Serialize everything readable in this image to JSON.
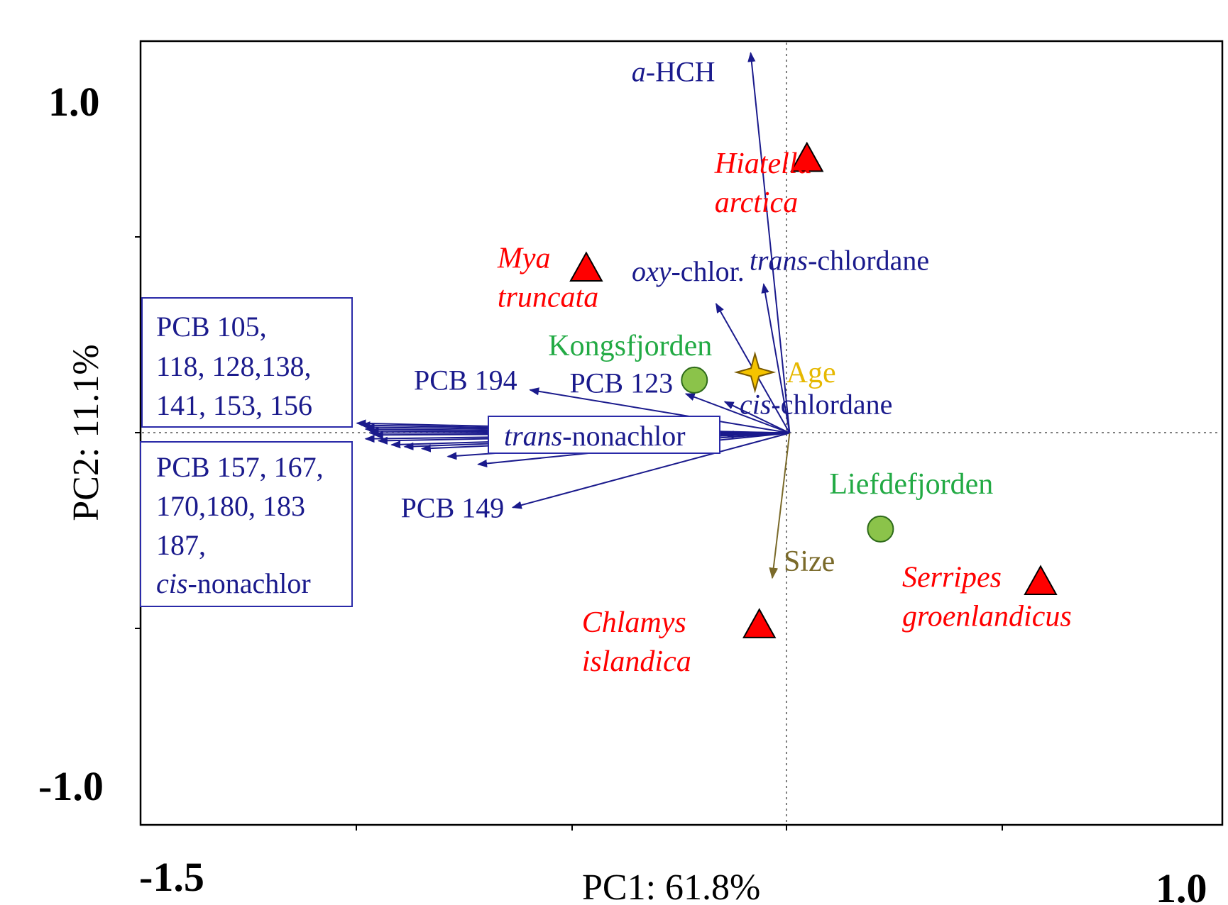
{
  "chart_data": {
    "type": "scatter",
    "title": "",
    "xlabel": "PC1: 61.8%",
    "ylabel": "PC2: 11.1%",
    "xlim": [
      -1.5,
      1.0
    ],
    "ylim": [
      -1.0,
      1.0
    ],
    "x_tick_labels": [
      "-1.5",
      "1.0"
    ],
    "y_tick_labels": [
      "1.0",
      "-1.0"
    ],
    "grid": false,
    "reference_lines": "dotted lines at x = 0 and y = 0",
    "colors": {
      "axes": "#000000",
      "loadings": "#1a1a8c",
      "species": "#ff0000",
      "fjords": "#22aa44",
      "age": "#e6b800",
      "size": "#7a6a2a"
    },
    "species": [
      {
        "label_lines": [
          "Hiatella",
          "arctica"
        ],
        "x": 0.04,
        "y": 0.7
      },
      {
        "label_lines": [
          "Mya",
          "truncata"
        ],
        "x": -0.47,
        "y": 0.42
      },
      {
        "label_lines": [
          "Chlamys",
          "islandica"
        ],
        "x": -0.07,
        "y": -0.49
      },
      {
        "label_lines": [
          "Serripes",
          "groenlandicus"
        ],
        "x": 0.58,
        "y": -0.38
      }
    ],
    "fjords": [
      {
        "label": "Kongsfjorden",
        "x": -0.22,
        "y": 0.135
      },
      {
        "label": "Liefdefjorden",
        "x": 0.21,
        "y": -0.245
      }
    ],
    "age": {
      "label": "Age",
      "x": -0.08,
      "y": 0.155
    },
    "size": {
      "label": "Size",
      "x": -0.04,
      "y": -0.37
    },
    "loadings": [
      {
        "label": "a-HCH",
        "x": -0.09,
        "y": 0.97
      },
      {
        "label": "trans-chlordane",
        "x": -0.06,
        "y": 0.38
      },
      {
        "label": "oxy-chlor.",
        "x": -0.17,
        "y": 0.33
      },
      {
        "label": "cis-chlordane",
        "x": -0.15,
        "y": 0.08
      },
      {
        "label": "PCB 123",
        "x": -0.24,
        "y": 0.1
      },
      {
        "label": "PCB 194",
        "x": -0.6,
        "y": 0.11
      },
      {
        "label": "PCB 149",
        "x": -0.64,
        "y": -0.19
      },
      {
        "label": "trans-nonachlor",
        "x": -0.15,
        "y": -0.005
      },
      {
        "label": "PCB 105",
        "x": -1.0,
        "y": 0.025
      },
      {
        "label": "PCB 118",
        "x": -0.99,
        "y": 0.02
      },
      {
        "label": "PCB 128",
        "x": -0.98,
        "y": 0.015
      },
      {
        "label": "PCB 138",
        "x": -0.98,
        "y": 0.01
      },
      {
        "label": "PCB 141",
        "x": -0.97,
        "y": 0.005
      },
      {
        "label": "PCB 153",
        "x": -0.97,
        "y": 0.0
      },
      {
        "label": "PCB 156",
        "x": -0.96,
        "y": -0.005
      },
      {
        "label": "PCB 157",
        "x": -0.98,
        "y": -0.015
      },
      {
        "label": "PCB 167",
        "x": -0.92,
        "y": -0.03
      },
      {
        "label": "PCB 170",
        "x": -0.85,
        "y": -0.04
      },
      {
        "label": "PCB 180",
        "x": -0.79,
        "y": -0.06
      },
      {
        "label": "PCB 183",
        "x": -0.72,
        "y": -0.08
      },
      {
        "label": "PCB 187",
        "x": -0.89,
        "y": -0.035
      },
      {
        "label": "cis-nonachlor",
        "x": -0.95,
        "y": -0.02
      }
    ],
    "box_upper": {
      "lines": [
        "PCB 105,",
        "118, 128,138,",
        "141, 153, 156"
      ]
    },
    "box_lower": {
      "lines": [
        "PCB 157, 167,",
        "170,180, 183",
        "187,"
      ],
      "last_line_italic": "cis",
      "last_line_rest": "-nonachlor"
    }
  }
}
